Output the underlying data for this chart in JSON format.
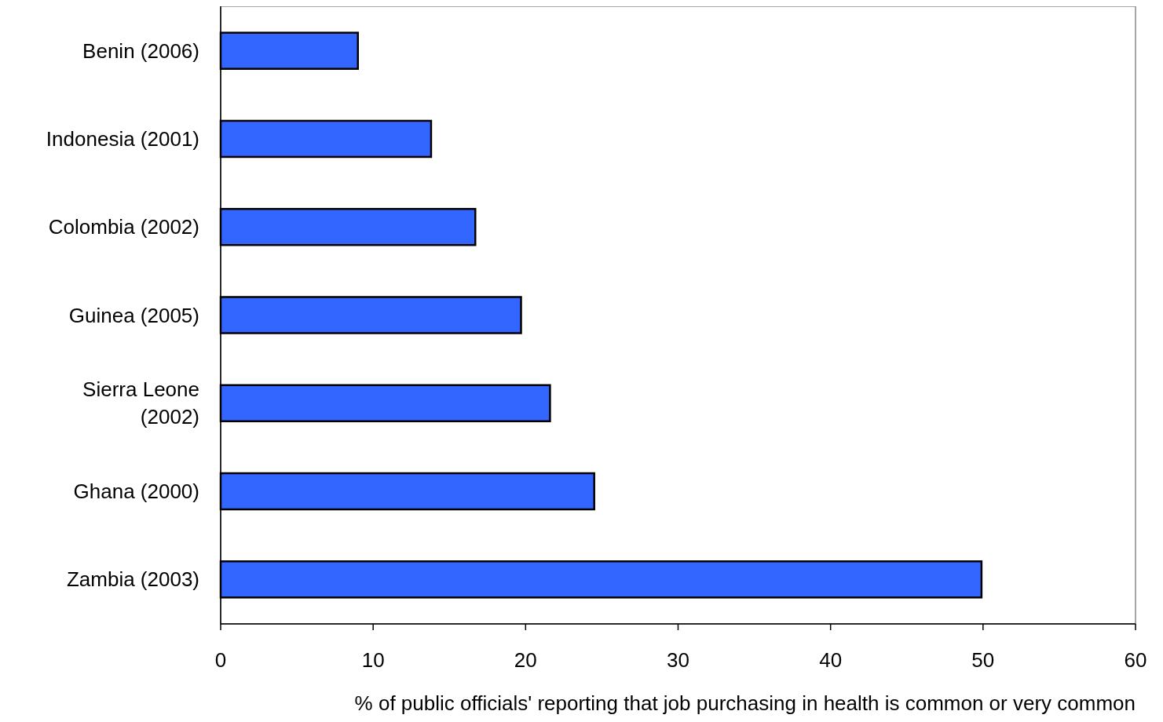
{
  "chart_data": {
    "type": "bar",
    "orientation": "horizontal",
    "xlabel": "% of public officials' reporting that job purchasing in health is common or very common",
    "categories": [
      "Benin (2006)",
      "Indonesia (2001)",
      "Colombia (2002)",
      "Guinea (2005)",
      "Sierra Leone (2002)",
      "Ghana (2000)",
      "Zambia (2003)"
    ],
    "values": [
      9,
      13.8,
      16.7,
      19.7,
      21.6,
      24.5,
      49.9
    ],
    "color": "#3366ff",
    "xlim": [
      0,
      60
    ],
    "xticks": [
      0,
      10,
      20,
      30,
      40,
      50,
      60
    ],
    "grid": false
  }
}
